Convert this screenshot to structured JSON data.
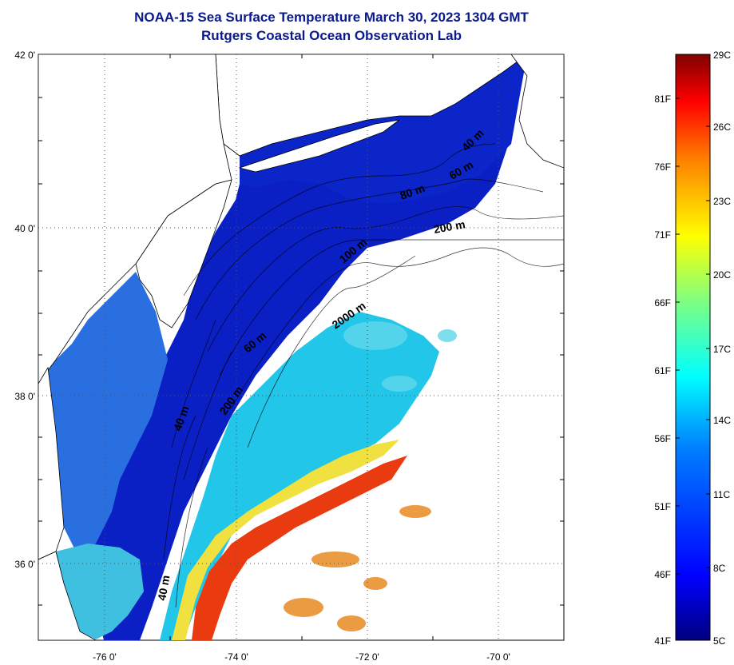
{
  "title": {
    "line1": "NOAA-15 Sea Surface Temperature March 30, 2023 1304 GMT",
    "line2": "Rutgers Coastal Ocean Observation Lab"
  },
  "map": {
    "lat_labels": [
      "42 0'",
      "40 0'",
      "38 0'",
      "36 0'"
    ],
    "lon_labels": [
      "-76 0'",
      "-74 0'",
      "-72 0'",
      "-70 0'"
    ],
    "contour_labels": [
      "40 m",
      "60 m",
      "80 m",
      "200 m",
      "100 m",
      "2000 m",
      "60 m",
      "200 m",
      "40 m",
      "40 m"
    ],
    "colors": {
      "land": "#ffffff",
      "cold": "#0a1fc4",
      "cool": "#1e6ee0",
      "mild": "#1ec8e6",
      "warm": "#e8e030",
      "hot": "#ea3a10"
    }
  },
  "colorbar": {
    "f_labels": [
      "81F",
      "76F",
      "71F",
      "66F",
      "61F",
      "56F",
      "51F",
      "46F",
      "41F"
    ],
    "c_labels": [
      "29C",
      "26C",
      "23C",
      "20C",
      "17C",
      "14C",
      "11C",
      "8C",
      "5C"
    ],
    "stops": [
      "#000080",
      "#0000ff",
      "#0080ff",
      "#00ffff",
      "#80ff80",
      "#ffff00",
      "#ff8000",
      "#ff0000",
      "#800000"
    ]
  }
}
